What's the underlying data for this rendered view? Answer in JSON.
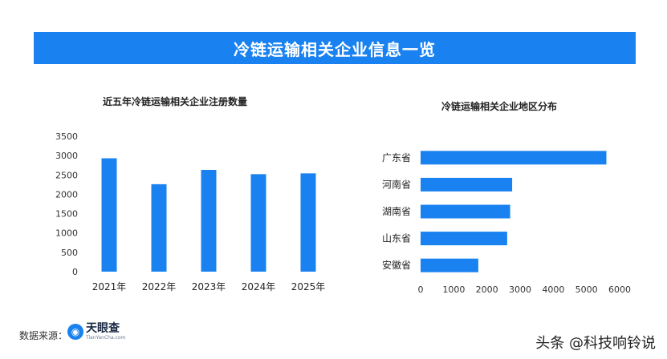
{
  "banner": {
    "title": "冷链运输相关企业信息一览"
  },
  "chart_data": [
    {
      "type": "bar",
      "title": "近五年冷链运输相关企业注册数量",
      "categories": [
        "2021年",
        "2022年",
        "2023年",
        "2024年",
        "2025年"
      ],
      "values": [
        2930,
        2260,
        2630,
        2520,
        2540
      ],
      "ylim": [
        0,
        3500
      ],
      "yticks": [
        0,
        500,
        1000,
        1500,
        2000,
        2500,
        3000,
        3500
      ],
      "color": "#1a82f0",
      "grid": false
    },
    {
      "type": "bar",
      "orientation": "horizontal",
      "title": "冷链运输相关企业地区分布",
      "categories": [
        "广东省",
        "河南省",
        "湖南省",
        "山东省",
        "安徽省"
      ],
      "values": [
        5600,
        2760,
        2700,
        2610,
        1740
      ],
      "xlim": [
        0,
        6000
      ],
      "xticks": [
        0,
        1000,
        2000,
        3000,
        4000,
        5000,
        6000
      ],
      "color": "#1a82f0",
      "grid": false
    }
  ],
  "footer": {
    "source_label": "数据来源：",
    "logo_name": "天眼查",
    "logo_sub": "TianYanCha.com",
    "logo_icon": "eye-logo-icon"
  },
  "watermark": "头条 @科技响铃说"
}
